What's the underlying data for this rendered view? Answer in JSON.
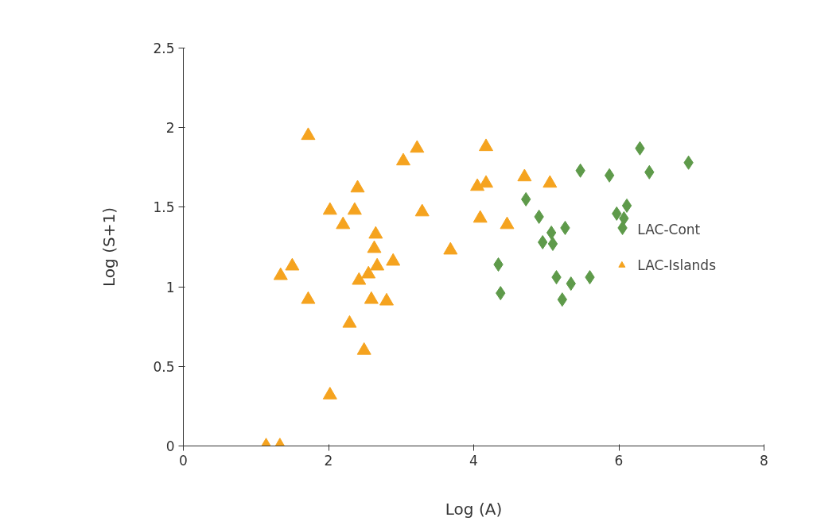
{
  "chart_data": {
    "type": "scatter",
    "xlabel": "Log (A)",
    "ylabel": "Log (S+1)",
    "xlim": [
      0,
      8
    ],
    "ylim": [
      0,
      2.5
    ],
    "xticks": [
      0,
      2,
      4,
      6,
      8
    ],
    "yticks": [
      0,
      0.5,
      1,
      1.5,
      2,
      2.5
    ],
    "grid": false,
    "legend": "right",
    "series": [
      {
        "name": "LAC-Cont",
        "color": "#5e9a4a",
        "marker": "diamond",
        "x": [
          4.34,
          4.37,
          4.72,
          4.9,
          4.95,
          5.07,
          5.09,
          5.14,
          5.22,
          5.26,
          5.34,
          5.47,
          5.6,
          5.87,
          5.97,
          6.05,
          6.07,
          6.11,
          6.29,
          6.42,
          6.96
        ],
        "values": [
          1.14,
          0.96,
          1.55,
          1.44,
          1.28,
          1.34,
          1.27,
          1.06,
          0.92,
          1.37,
          1.02,
          1.73,
          1.06,
          1.7,
          1.46,
          1.37,
          1.43,
          1.51,
          1.87,
          1.72,
          1.78
        ]
      },
      {
        "name": "LAC-Islands",
        "color": "#f5a31f",
        "marker": "triangle",
        "x": [
          1.14,
          1.33,
          1.72,
          1.34,
          1.5,
          1.72,
          2.02,
          2.02,
          2.2,
          2.29,
          2.36,
          2.4,
          2.42,
          2.49,
          2.55,
          2.59,
          2.63,
          2.65,
          2.67,
          2.8,
          2.89,
          3.03,
          3.22,
          3.29,
          3.68,
          4.05,
          4.09,
          4.17,
          4.17,
          4.46,
          4.7,
          5.05
        ],
        "values": [
          0,
          0,
          1.95,
          1.07,
          1.13,
          0.92,
          1.48,
          0.32,
          1.39,
          0.77,
          1.48,
          1.62,
          1.04,
          0.6,
          1.08,
          0.92,
          1.24,
          1.33,
          1.13,
          0.91,
          1.16,
          1.79,
          1.87,
          1.47,
          1.23,
          1.63,
          1.43,
          1.88,
          1.65,
          1.39,
          1.69,
          1.65
        ]
      }
    ]
  }
}
